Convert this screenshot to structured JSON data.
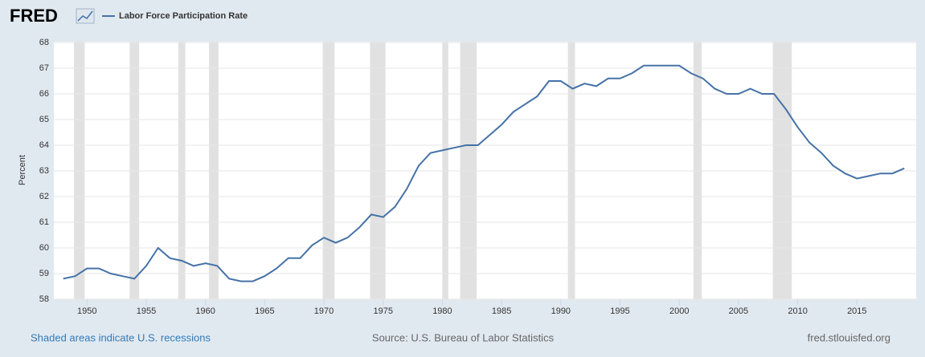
{
  "header": {
    "logo": "FRED"
  },
  "chart_data": {
    "type": "line",
    "ylabel": "Percent",
    "x": [
      1948,
      1949,
      1950,
      1951,
      1952,
      1953,
      1954,
      1955,
      1956,
      1957,
      1958,
      1959,
      1960,
      1961,
      1962,
      1963,
      1964,
      1965,
      1966,
      1967,
      1968,
      1969,
      1970,
      1971,
      1972,
      1973,
      1974,
      1975,
      1976,
      1977,
      1978,
      1979,
      1980,
      1981,
      1982,
      1983,
      1984,
      1985,
      1986,
      1987,
      1988,
      1989,
      1990,
      1991,
      1992,
      1993,
      1994,
      1995,
      1996,
      1997,
      1998,
      1999,
      2000,
      2001,
      2002,
      2003,
      2004,
      2005,
      2006,
      2007,
      2008,
      2009,
      2010,
      2011,
      2012,
      2013,
      2014,
      2015,
      2016,
      2017,
      2018,
      2019
    ],
    "series": [
      {
        "name": "Labor Force Participation Rate",
        "color": "#4572a7",
        "values": [
          58.8,
          58.9,
          59.2,
          59.2,
          59.0,
          58.9,
          58.8,
          59.3,
          60.0,
          59.6,
          59.5,
          59.3,
          59.4,
          59.3,
          58.8,
          58.7,
          58.7,
          58.9,
          59.2,
          59.6,
          59.6,
          60.1,
          60.4,
          60.2,
          60.4,
          60.8,
          61.3,
          61.2,
          61.6,
          62.3,
          63.2,
          63.7,
          63.8,
          63.9,
          64.0,
          64.0,
          64.4,
          64.8,
          65.3,
          65.6,
          65.9,
          66.5,
          66.5,
          66.2,
          66.4,
          66.3,
          66.6,
          66.6,
          66.8,
          67.1,
          67.1,
          67.1,
          67.1,
          66.8,
          66.6,
          66.2,
          66.0,
          66.0,
          66.2,
          66.0,
          66.0,
          65.4,
          64.7,
          64.1,
          63.7,
          63.2,
          62.9,
          62.7,
          62.8,
          62.9,
          62.9,
          63.1
        ]
      }
    ],
    "recessions": [
      [
        1948.9,
        1949.8
      ],
      [
        1953.6,
        1954.4
      ],
      [
        1957.7,
        1958.3
      ],
      [
        1960.3,
        1961.1
      ],
      [
        1969.9,
        1970.9
      ],
      [
        1973.9,
        1975.2
      ],
      [
        1980.0,
        1980.5
      ],
      [
        1981.5,
        1982.9
      ],
      [
        1990.6,
        1991.2
      ],
      [
        2001.2,
        2001.9
      ],
      [
        2007.9,
        2009.5
      ]
    ],
    "recession_color": "#e1e1e1",
    "xlim": [
      1947.2,
      2020.0
    ],
    "xticks": [
      1950,
      1955,
      1960,
      1965,
      1970,
      1975,
      1980,
      1985,
      1990,
      1995,
      2000,
      2005,
      2010,
      2015
    ],
    "ylim": [
      58,
      68
    ],
    "yticks": [
      58,
      59,
      60,
      61,
      62,
      63,
      64,
      65,
      66,
      67,
      68
    ],
    "grid": true
  },
  "footer": {
    "note": "Shaded areas indicate U.S. recessions",
    "source": "Source: U.S. Bureau of Labor Statistics",
    "site": "fred.stlouisfed.org"
  }
}
